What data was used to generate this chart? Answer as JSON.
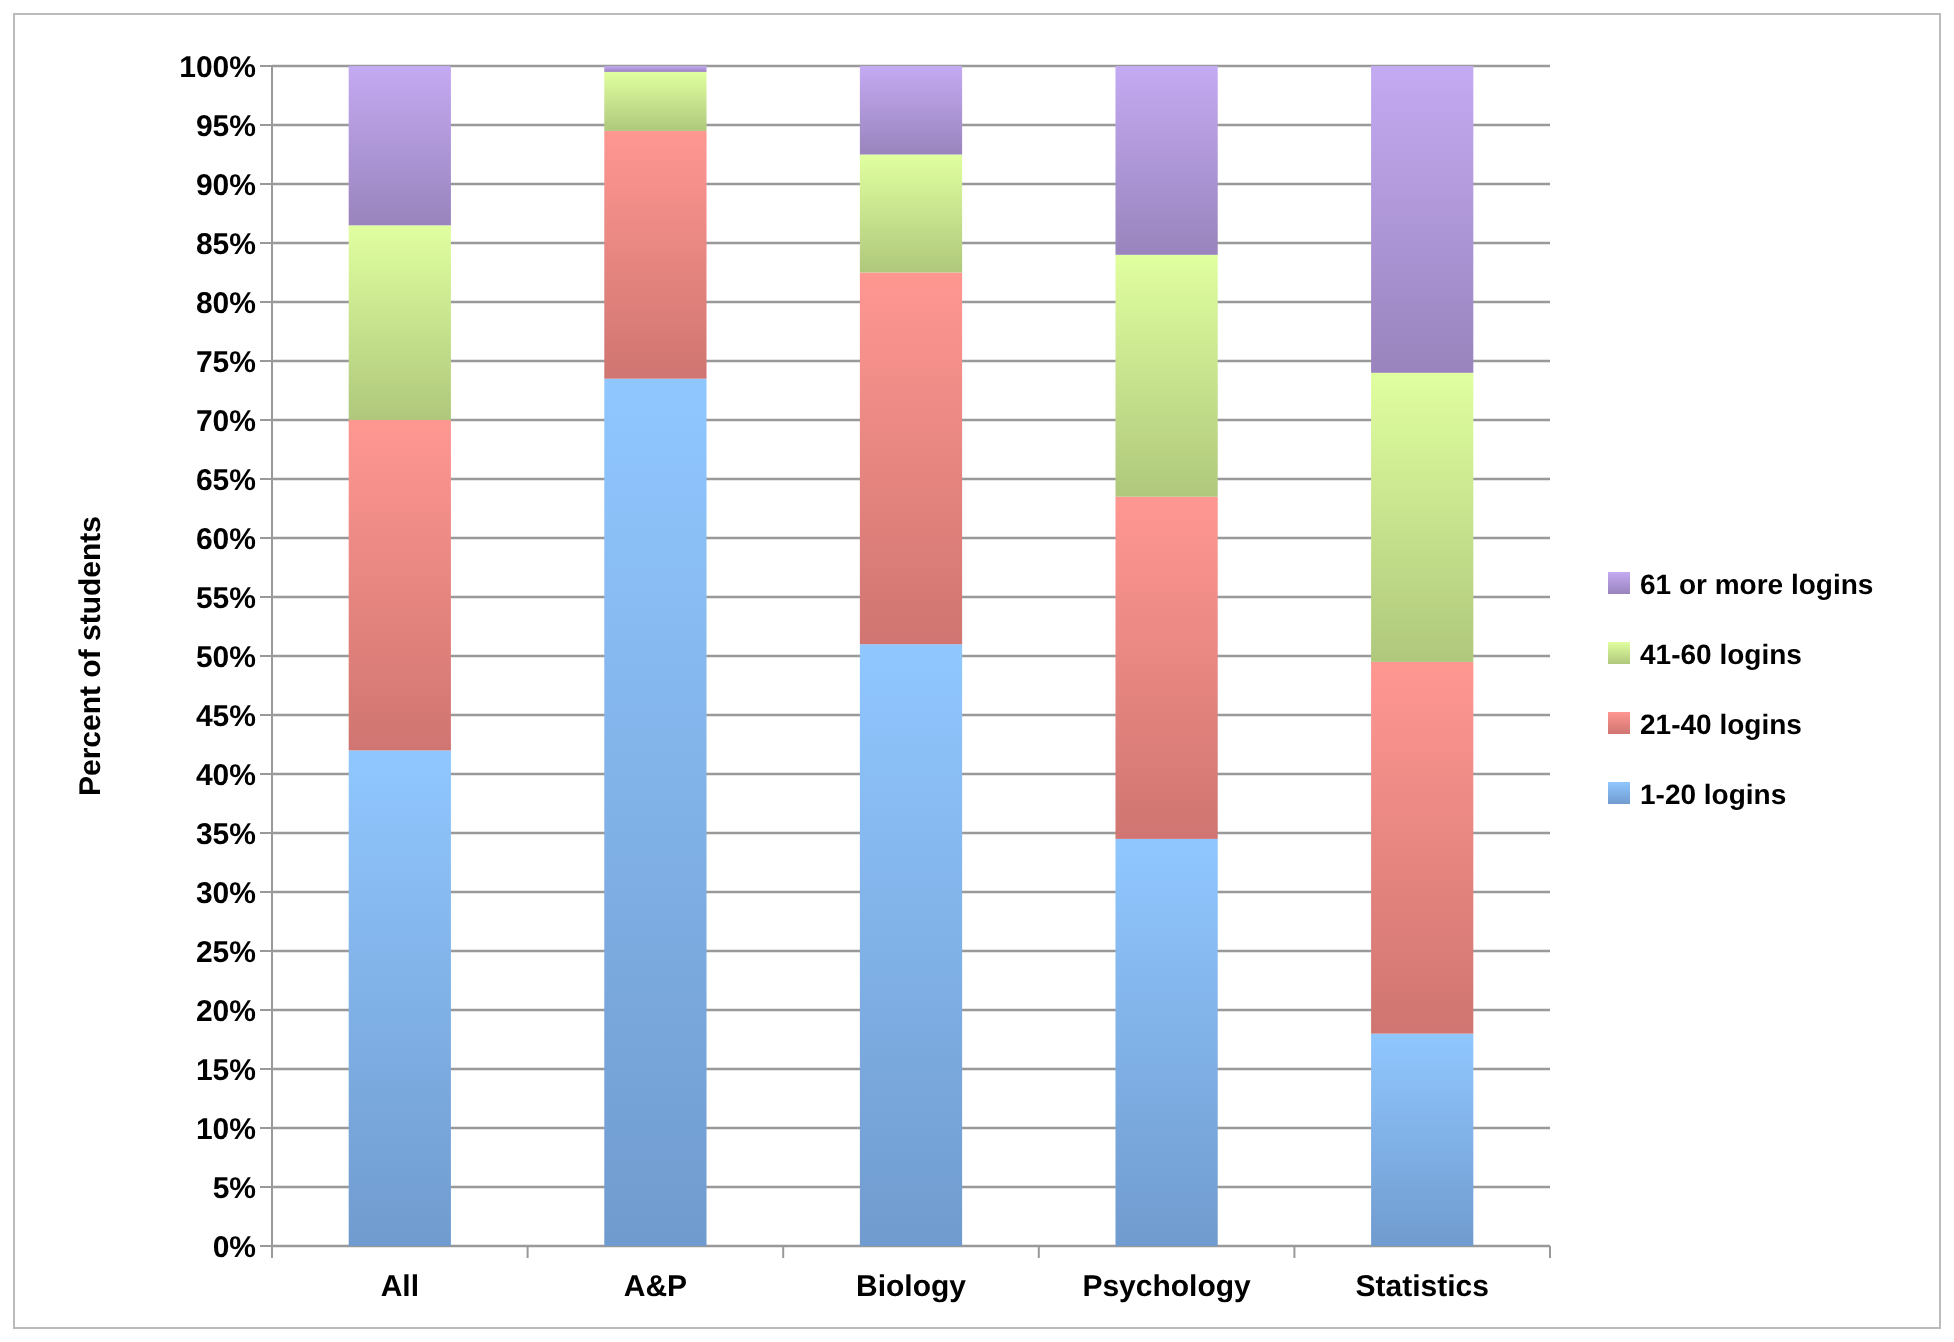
{
  "chart_data": {
    "type": "bar",
    "stacked": true,
    "ylabel": "Percent of students",
    "categories": [
      "All",
      "A&P",
      "Biology",
      "Psychology",
      "Statistics"
    ],
    "series": [
      {
        "name": "1-20 logins",
        "color": "#7fb0ea",
        "values": [
          42,
          73.5,
          51,
          34.5,
          18
        ]
      },
      {
        "name": "21-40 logins",
        "color": "#ec8580",
        "values": [
          28,
          21,
          31.5,
          29,
          31.5
        ]
      },
      {
        "name": "41-60 logins",
        "color": "#c6e38c",
        "values": [
          16.5,
          5,
          10,
          20.5,
          24.5
        ]
      },
      {
        "name": "61 or more logins",
        "color": "#ad96d6",
        "values": [
          13.5,
          0.5,
          7.5,
          16,
          26
        ]
      }
    ],
    "ylim": [
      0,
      100
    ],
    "yticks": [
      {
        "value": 0,
        "label": "0%"
      },
      {
        "value": 5,
        "label": "5%"
      },
      {
        "value": 10,
        "label": "10%"
      },
      {
        "value": 15,
        "label": "15%"
      },
      {
        "value": 20,
        "label": "20%"
      },
      {
        "value": 25,
        "label": "25%"
      },
      {
        "value": 30,
        "label": "30%"
      },
      {
        "value": 35,
        "label": "35%"
      },
      {
        "value": 40,
        "label": "40%"
      },
      {
        "value": 45,
        "label": "45%"
      },
      {
        "value": 50,
        "label": "50%"
      },
      {
        "value": 55,
        "label": "55%"
      },
      {
        "value": 60,
        "label": "60%"
      },
      {
        "value": 65,
        "label": "65%"
      },
      {
        "value": 70,
        "label": "70%"
      },
      {
        "value": 75,
        "label": "75%"
      },
      {
        "value": 80,
        "label": "80%"
      },
      {
        "value": 85,
        "label": "85%"
      },
      {
        "value": 90,
        "label": "90%"
      },
      {
        "value": 95,
        "label": "95%"
      },
      {
        "value": 100,
        "label": "100%"
      }
    ],
    "grid": "y",
    "legend": "right"
  }
}
